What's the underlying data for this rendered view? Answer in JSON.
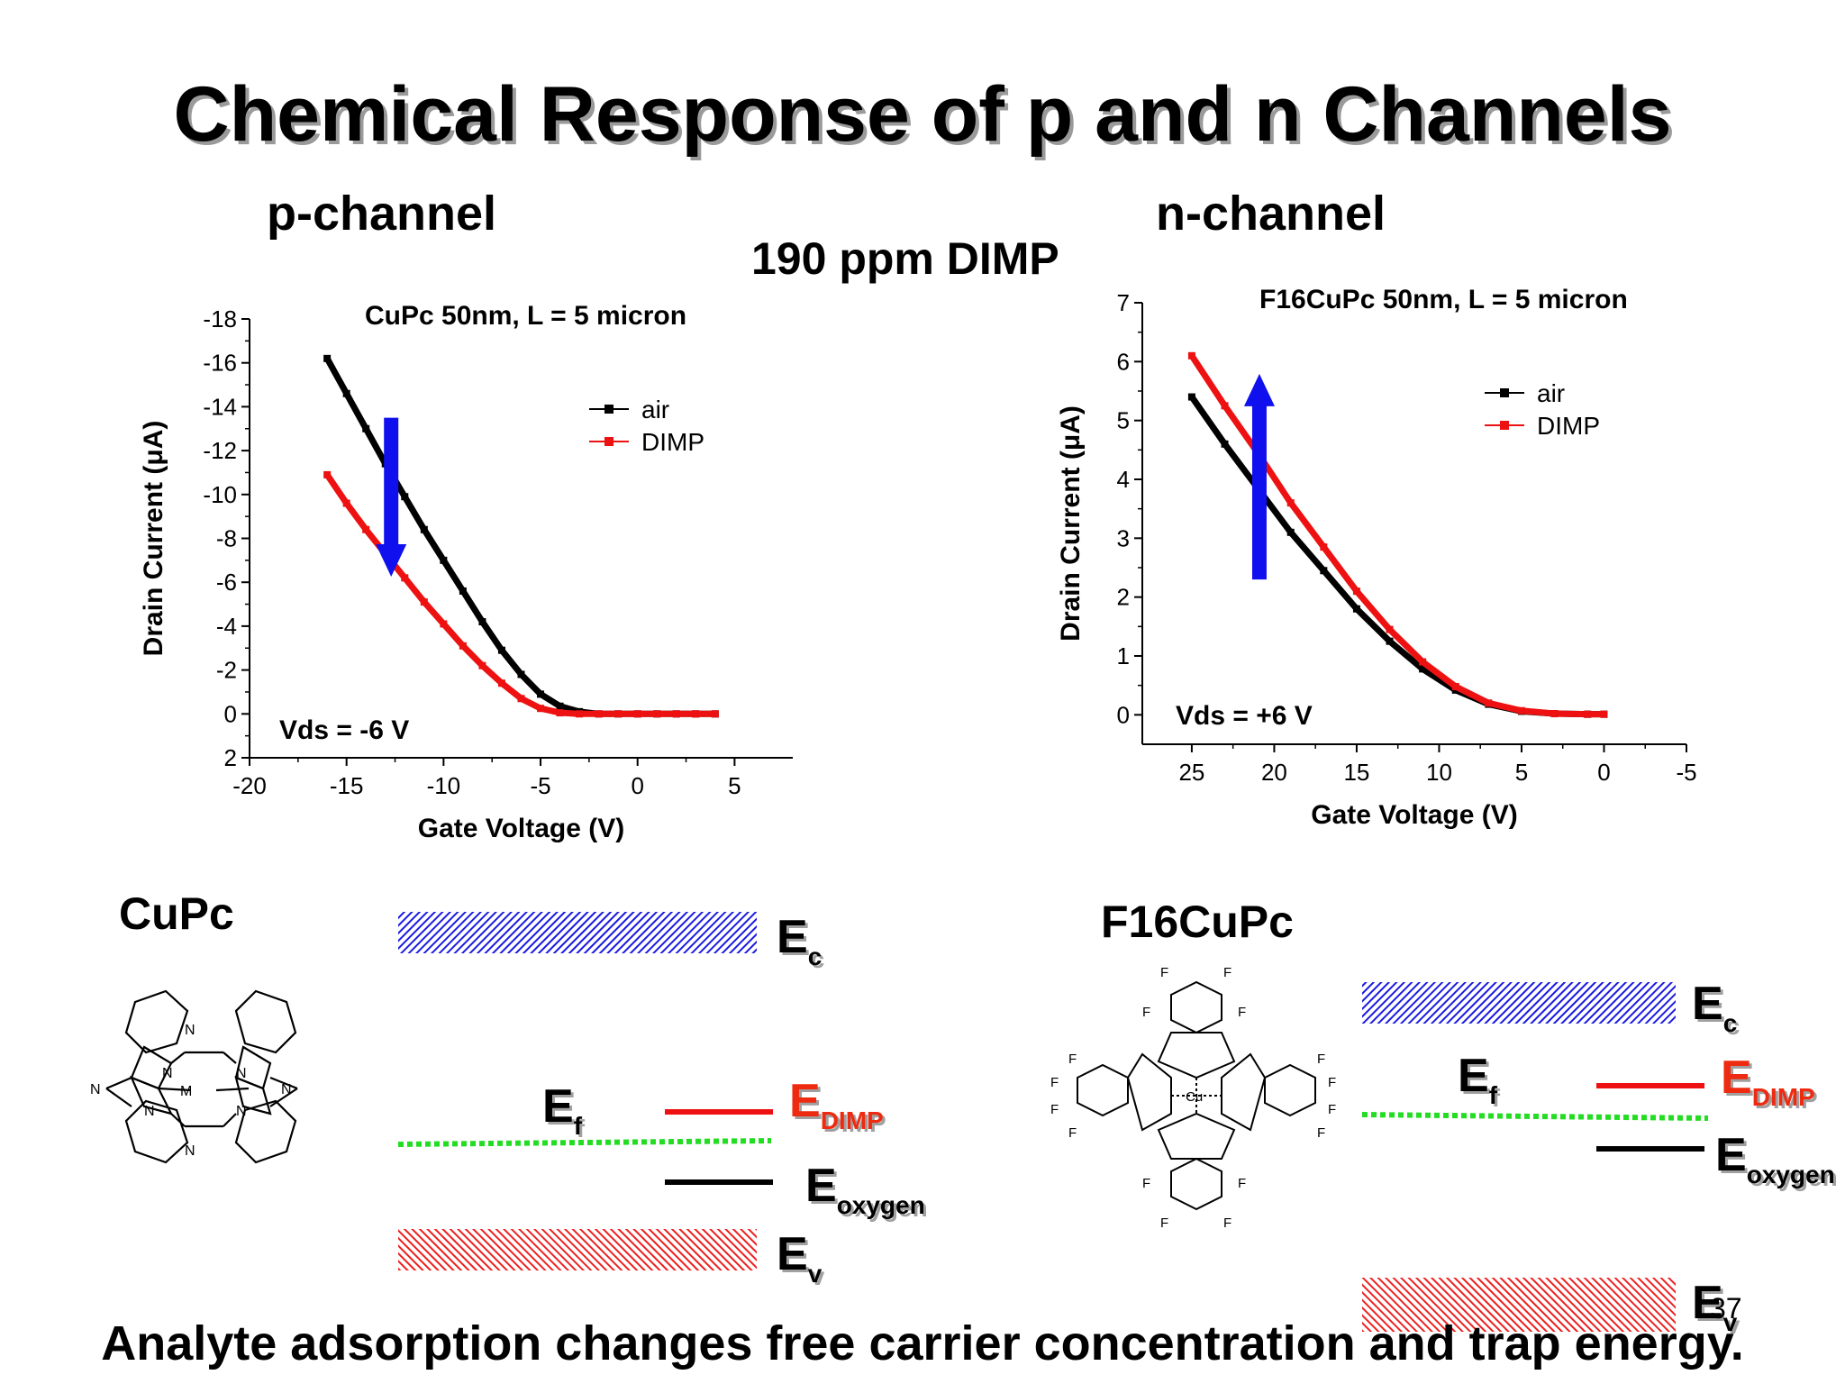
{
  "title": "Chemical Response of p and n Channels",
  "headings": {
    "p_channel": "p-channel",
    "n_channel": "n-channel",
    "center": "190 ppm DIMP"
  },
  "chart_data": [
    {
      "type": "line",
      "title": "CuPc 50nm, L = 5 micron",
      "xlabel": "Gate Voltage (V)",
      "ylabel": "Drain Current (μA)",
      "annotation": "Vds = -6 V",
      "xlim": [
        -20,
        8
      ],
      "ylim": [
        2,
        -18
      ],
      "xticks": [
        -20,
        -15,
        -10,
        -5,
        0,
        5
      ],
      "xtick_labels": [
        "-20",
        "-15",
        "-10",
        "-5",
        "0",
        "5"
      ],
      "yticks": [
        -18,
        -16,
        -14,
        -12,
        -10,
        -8,
        -6,
        -4,
        -2,
        0,
        2
      ],
      "ytick_labels": [
        "-18",
        "-16",
        "-14",
        "-12",
        "-10",
        "-8",
        "-6",
        "-4",
        "-2",
        "0",
        "2"
      ],
      "legend_position": "top-right",
      "arrow": {
        "direction": "down",
        "x": -12.7,
        "y_from": -13.5,
        "y_to": -6.5,
        "color": "#1010ee"
      },
      "series": [
        {
          "name": "air",
          "color": "#000000",
          "x": [
            -16,
            -15,
            -14,
            -13,
            -12,
            -11,
            -10,
            -9,
            -8,
            -7,
            -6,
            -5,
            -4,
            -3,
            -2,
            -1,
            0,
            1,
            2,
            3,
            4
          ],
          "y": [
            -16.2,
            -14.6,
            -13.0,
            -11.4,
            -9.9,
            -8.4,
            -7.0,
            -5.6,
            -4.2,
            -2.9,
            -1.8,
            -0.9,
            -0.35,
            -0.1,
            0,
            0,
            0,
            0,
            0,
            0,
            0
          ]
        },
        {
          "name": "DIMP",
          "color": "#ee1111",
          "x": [
            -16,
            -15,
            -14,
            -13,
            -12,
            -11,
            -10,
            -9,
            -8,
            -7,
            -6,
            -5,
            -4,
            -3,
            -2,
            -1,
            0,
            1,
            2,
            3,
            4
          ],
          "y": [
            -10.9,
            -9.6,
            -8.4,
            -7.3,
            -6.2,
            -5.1,
            -4.1,
            -3.1,
            -2.2,
            -1.4,
            -0.7,
            -0.25,
            -0.05,
            0,
            0,
            0,
            0,
            0,
            0,
            0,
            0
          ]
        }
      ]
    },
    {
      "type": "line",
      "title": "F16CuPc 50nm, L = 5 micron",
      "xlabel": "Gate Voltage (V)",
      "ylabel": "Drain Current (μA)",
      "annotation": "Vds = +6 V",
      "xlim": [
        28,
        -5
      ],
      "ylim": [
        -0.5,
        7
      ],
      "xticks": [
        25,
        20,
        15,
        10,
        5,
        0,
        -5
      ],
      "xtick_labels": [
        "25",
        "20",
        "15",
        "10",
        "5",
        "0",
        "-5"
      ],
      "yticks": [
        0,
        1,
        2,
        3,
        4,
        5,
        6,
        7
      ],
      "ytick_labels": [
        "0",
        "1",
        "2",
        "3",
        "4",
        "5",
        "6",
        "7"
      ],
      "legend_position": "top-right",
      "arrow": {
        "direction": "up",
        "x": 20.9,
        "y_from": 2.3,
        "y_to": 5.7,
        "color": "#1010ee"
      },
      "series": [
        {
          "name": "air",
          "color": "#000000",
          "x": [
            25,
            23,
            21,
            19,
            17,
            15,
            13,
            11,
            9,
            7,
            5,
            3,
            1,
            0
          ],
          "y": [
            5.4,
            4.6,
            3.85,
            3.1,
            2.45,
            1.8,
            1.25,
            0.78,
            0.42,
            0.18,
            0.06,
            0.02,
            0.01,
            0.01
          ]
        },
        {
          "name": "DIMP",
          "color": "#ee1111",
          "x": [
            25,
            23,
            21,
            19,
            17,
            15,
            13,
            11,
            9,
            7,
            5,
            3,
            1,
            0
          ],
          "y": [
            6.1,
            5.25,
            4.45,
            3.6,
            2.85,
            2.1,
            1.45,
            0.9,
            0.48,
            0.2,
            0.07,
            0.02,
            0.01,
            0.01
          ]
        }
      ]
    }
  ],
  "energy_diagrams": {
    "left": {
      "molecule": "CuPc",
      "ec": "E",
      "ec_sub": "c",
      "ef": "E",
      "ef_sub": "f",
      "edimp": "E",
      "edimp_sub": "DIMP",
      "eox": "E",
      "eox_sub": "oxygen",
      "ev": "E",
      "ev_sub": "v"
    },
    "right": {
      "molecule": "F16CuPc",
      "ec": "E",
      "ec_sub": "c",
      "ef": "E",
      "ef_sub": "f",
      "edimp": "E",
      "edimp_sub": "DIMP",
      "eox": "E",
      "eox_sub": "oxygen",
      "ev": "E",
      "ev_sub": "v"
    }
  },
  "molecule_atoms": {
    "nitrogen": "N",
    "metal": "M",
    "copper": "Cu",
    "fluorine": "F"
  },
  "footer": "Analyte adsorption changes free carrier concentration and trap energy.",
  "page_number": "37",
  "colors": {
    "conduction_band": "#1a1ae0",
    "valence_band": "#ee2020",
    "fermi": "#22dd22",
    "dimp_level": "#ee1111",
    "oxygen_level": "#000000"
  }
}
